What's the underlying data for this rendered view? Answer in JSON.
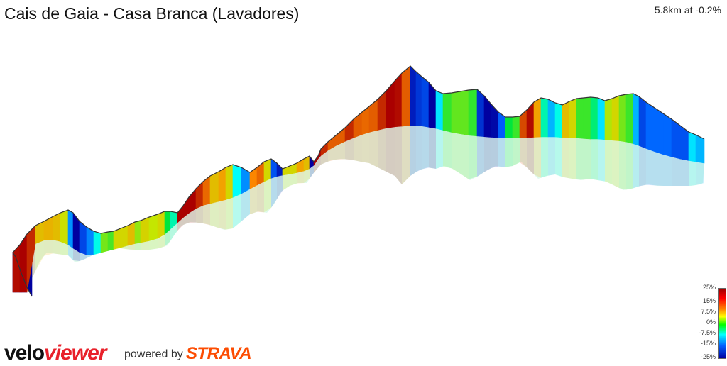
{
  "header": {
    "title": "Cais de Gaia - Casa Branca (Lavadores)",
    "stats": "5.8km at -0.2%"
  },
  "legend": {
    "labels": [
      "25%",
      "15%",
      "7.5%",
      "0%",
      "-7.5%",
      "-15%",
      "-25%"
    ],
    "colors": [
      "#a00000",
      "#ff0000",
      "#ff8c00",
      "#ffff00",
      "#00ff00",
      "#00ffff",
      "#0060ff",
      "#0000a0"
    ]
  },
  "footer": {
    "brand_part1": "velo",
    "brand_part2": "viewer",
    "powered_by": "powered by",
    "strava": "STRAVA"
  },
  "chart_data": {
    "type": "area",
    "distance_km": 5.8,
    "average_gradient_pct": -0.2,
    "grade_scale_pct": [
      -25,
      25
    ]
  }
}
